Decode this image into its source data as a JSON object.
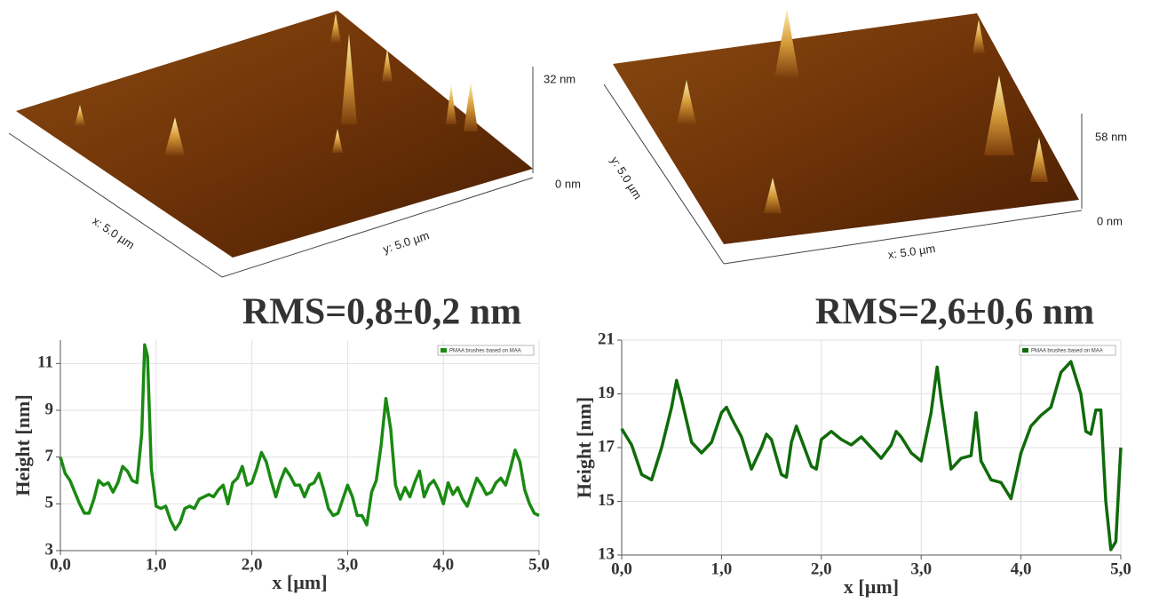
{
  "afm_images": [
    {
      "scale_max": "32 nm",
      "scale_min": "0 nm",
      "x_axis": "x: 5.0 µm",
      "y_axis": "y: 5.0 µm",
      "rms": "RMS=0,8±0,2 nm"
    },
    {
      "scale_max": "58 nm",
      "scale_min": "0 nm",
      "x_axis": "x: 5.0 µm",
      "y_axis": "y: 5.0 µm",
      "rms": "RMS=2,6±0,6 nm"
    }
  ],
  "chart_data": [
    {
      "type": "line",
      "xlabel": "x [µm]",
      "ylabel": "Height [nm]",
      "grid": true,
      "legend": "upper right",
      "xlim": [
        0,
        5
      ],
      "ylim": [
        3,
        12
      ],
      "xticks": [
        {
          "value": 0,
          "label": "0,0"
        },
        {
          "value": 1,
          "label": "1,0"
        },
        {
          "value": 2,
          "label": "2,0"
        },
        {
          "value": 3,
          "label": "3,0"
        },
        {
          "value": 4,
          "label": "4,0"
        },
        {
          "value": 5,
          "label": "5,0"
        }
      ],
      "yticks": [
        3,
        5,
        7,
        9,
        11
      ],
      "x": [
        0,
        0.05,
        0.1,
        0.15,
        0.2,
        0.25,
        0.3,
        0.35,
        0.4,
        0.45,
        0.5,
        0.55,
        0.6,
        0.65,
        0.7,
        0.75,
        0.8,
        0.85,
        0.88,
        0.91,
        0.95,
        1.0,
        1.05,
        1.1,
        1.15,
        1.2,
        1.25,
        1.3,
        1.35,
        1.4,
        1.45,
        1.5,
        1.55,
        1.6,
        1.65,
        1.7,
        1.75,
        1.8,
        1.85,
        1.9,
        1.95,
        2.0,
        2.05,
        2.1,
        2.15,
        2.2,
        2.25,
        2.3,
        2.35,
        2.4,
        2.45,
        2.5,
        2.55,
        2.6,
        2.65,
        2.7,
        2.75,
        2.8,
        2.85,
        2.9,
        2.95,
        3.0,
        3.05,
        3.1,
        3.15,
        3.2,
        3.25,
        3.3,
        3.35,
        3.4,
        3.45,
        3.5,
        3.55,
        3.6,
        3.65,
        3.7,
        3.75,
        3.8,
        3.85,
        3.9,
        3.95,
        4.0,
        4.05,
        4.1,
        4.15,
        4.2,
        4.25,
        4.3,
        4.35,
        4.4,
        4.45,
        4.5,
        4.55,
        4.6,
        4.65,
        4.7,
        4.75,
        4.8,
        4.85,
        4.9,
        4.95,
        5.0
      ],
      "series": [
        {
          "name": "PMAA brushes based on MAA",
          "color": "#1a8a12",
          "values": [
            7.0,
            6.3,
            6.0,
            5.5,
            5.0,
            4.6,
            4.6,
            5.2,
            6.0,
            5.8,
            5.9,
            5.5,
            5.9,
            6.6,
            6.4,
            6.0,
            5.9,
            8.0,
            11.8,
            11.3,
            6.5,
            4.9,
            4.8,
            4.9,
            4.3,
            3.9,
            4.2,
            4.8,
            4.9,
            4.8,
            5.2,
            5.3,
            5.4,
            5.3,
            5.6,
            5.8,
            5.0,
            5.9,
            6.1,
            6.6,
            5.8,
            5.9,
            6.5,
            7.2,
            6.8,
            6.0,
            5.3,
            6.0,
            6.5,
            6.2,
            5.8,
            5.8,
            5.3,
            5.8,
            5.9,
            6.3,
            5.6,
            4.8,
            4.5,
            4.6,
            5.2,
            5.8,
            5.3,
            4.5,
            4.5,
            4.1,
            5.5,
            6.0,
            7.5,
            9.5,
            8.2,
            5.8,
            5.2,
            5.7,
            5.3,
            5.9,
            6.4,
            5.3,
            5.8,
            6.0,
            5.6,
            5.0,
            5.9,
            5.4,
            5.7,
            5.2,
            4.9,
            5.5,
            6.1,
            5.8,
            5.4,
            5.5,
            5.9,
            6.1,
            5.8,
            6.5,
            7.3,
            6.8,
            5.6,
            5.0,
            4.6,
            4.5
          ]
        }
      ]
    },
    {
      "type": "line",
      "xlabel": "x [µm]",
      "ylabel": "Height [nm]",
      "grid": true,
      "legend": "upper right",
      "xlim": [
        0,
        5
      ],
      "ylim": [
        13,
        21
      ],
      "xticks": [
        {
          "value": 0,
          "label": "0,0"
        },
        {
          "value": 1,
          "label": "1,0"
        },
        {
          "value": 2,
          "label": "2,0"
        },
        {
          "value": 3,
          "label": "3,0"
        },
        {
          "value": 4,
          "label": "4,0"
        },
        {
          "value": 5,
          "label": "5,0"
        }
      ],
      "yticks": [
        13,
        15,
        17,
        19,
        21
      ],
      "x": [
        0,
        0.1,
        0.2,
        0.3,
        0.4,
        0.5,
        0.55,
        0.6,
        0.7,
        0.8,
        0.9,
        1.0,
        1.05,
        1.1,
        1.2,
        1.3,
        1.4,
        1.45,
        1.5,
        1.6,
        1.65,
        1.7,
        1.75,
        1.8,
        1.9,
        1.95,
        2.0,
        2.1,
        2.2,
        2.3,
        2.4,
        2.5,
        2.6,
        2.7,
        2.75,
        2.8,
        2.9,
        3.0,
        3.1,
        3.16,
        3.2,
        3.3,
        3.4,
        3.5,
        3.55,
        3.6,
        3.7,
        3.8,
        3.9,
        4.0,
        4.1,
        4.2,
        4.3,
        4.4,
        4.5,
        4.6,
        4.65,
        4.7,
        4.75,
        4.8,
        4.85,
        4.9,
        4.95,
        5.0
      ],
      "series": [
        {
          "name": "PMAA brushes based on MAA",
          "color": "#0f6b0a",
          "values": [
            17.7,
            17.1,
            16.0,
            15.8,
            17.0,
            18.5,
            19.5,
            18.8,
            17.2,
            16.8,
            17.2,
            18.3,
            18.5,
            18.1,
            17.4,
            16.2,
            17.0,
            17.5,
            17.3,
            16.0,
            15.9,
            17.2,
            17.8,
            17.3,
            16.3,
            16.2,
            17.3,
            17.6,
            17.3,
            17.1,
            17.4,
            17.0,
            16.6,
            17.1,
            17.6,
            17.4,
            16.8,
            16.5,
            18.3,
            20.0,
            18.8,
            16.2,
            16.6,
            16.7,
            18.3,
            16.5,
            15.8,
            15.7,
            15.1,
            16.8,
            17.8,
            18.2,
            18.5,
            19.8,
            20.2,
            19.0,
            17.6,
            17.5,
            18.4,
            18.4,
            15.0,
            13.2,
            13.5,
            17.0
          ]
        }
      ]
    }
  ]
}
